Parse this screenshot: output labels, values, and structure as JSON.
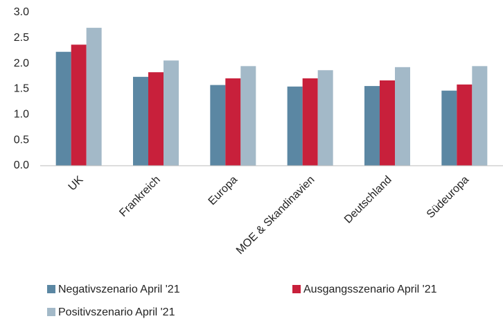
{
  "chart_data": {
    "type": "bar",
    "categories": [
      "UK",
      "Frankreich",
      "Europa",
      "MOE & Skandinavien",
      "Deutschland",
      "Südeuropa"
    ],
    "series": [
      {
        "name": "Negativszenario April '21",
        "color": "#5b87a3",
        "values": [
          2.23,
          1.74,
          1.58,
          1.55,
          1.56,
          1.47
        ]
      },
      {
        "name": "Ausgangsszenario April '21",
        "color": "#c8203b",
        "values": [
          2.37,
          1.83,
          1.71,
          1.71,
          1.67,
          1.59
        ]
      },
      {
        "name": "Positivszenario April '21",
        "color": "#a3b9c8",
        "values": [
          2.7,
          2.06,
          1.95,
          1.87,
          1.93,
          1.95
        ]
      }
    ],
    "ylim": [
      0,
      3
    ],
    "yticks": [
      {
        "value": 0,
        "label": "0.0"
      },
      0.5,
      {
        "value": 1,
        "label": "1.0"
      },
      1.5,
      {
        "value": 2,
        "label": "2.0"
      },
      2.5,
      {
        "value": 3,
        "label": "3.0"
      }
    ],
    "grid": false
  }
}
